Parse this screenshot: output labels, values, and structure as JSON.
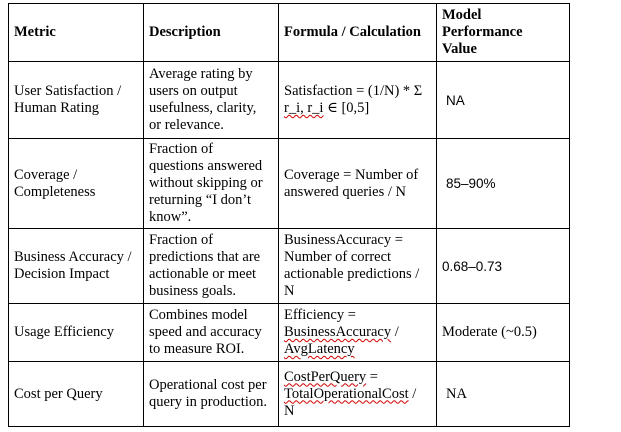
{
  "headers": [
    "Metric",
    "Description",
    "Formula / Calculation",
    "Model\nPerformance\nValue"
  ],
  "rows": [
    {
      "metric": "User Satisfaction /\nHuman Rating",
      "description": "Average rating by\nusers on output\nusefulness, clarity,\nor relevance.",
      "formula_a": "Satisfaction = (1/N) * Σ\n",
      "formula_squig": "r_i, r_i",
      "formula_b": " ∈ [0,5]",
      "value": "NA"
    },
    {
      "metric": "Coverage /\nCompleteness",
      "description": "Fraction of\nquestions answered\nwithout skipping or\nreturning “I don’t\nknow”.",
      "formula": "Coverage = Number of\nanswered queries / N",
      "value": "85–90%"
    },
    {
      "metric": "Business Accuracy /\nDecision Impact",
      "description": "Fraction of\npredictions that are\nactionable or meet\nbusiness goals.",
      "formula": "BusinessAccuracy =\nNumber of correct\nactionable predictions /\nN",
      "value": "0.68–0.73"
    },
    {
      "metric": "Usage Efficiency",
      "description": "Combines model\nspeed and accuracy\nto measure ROI.",
      "formula_a": "Efficiency =\n",
      "formula_squig1": "BusinessAccuracy",
      "formula_b": " /\n",
      "formula_squig2": "AvgLatency",
      "value": "Moderate (~0.5)"
    },
    {
      "metric": "Cost per Query",
      "description": "Operational cost per\nquery in production.",
      "formula_squig1": "CostPerQuery",
      "formula_a": " =\n",
      "formula_squig2": "TotalOperationalCost",
      "formula_b": " /\nN",
      "value": "NA"
    }
  ]
}
